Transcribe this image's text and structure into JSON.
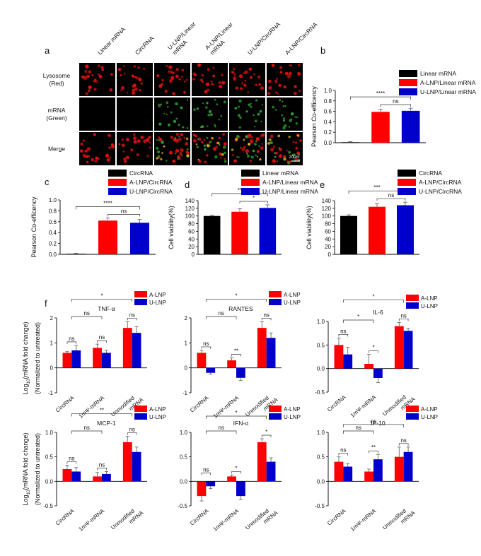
{
  "figure_a": {
    "panel_label": "a",
    "columns": [
      "Linear mRNA",
      "CircRNA",
      "U-LNP/Linear mRNA",
      "A-LNP/Linear mRNA",
      "U-LNP/CircRNA",
      "A-LNP/CircRNA"
    ],
    "columns_wrapped": [
      [
        "Linear mRNA"
      ],
      [
        "CircRNA"
      ],
      [
        "U-LNP/Linear",
        "mRNA"
      ],
      [
        "A-LNP/Linear",
        "mRNA"
      ],
      [
        "U-LNP/CircRNA"
      ],
      [
        "A-LNP/CircRNA"
      ]
    ],
    "rows": [
      [
        "Lysosome",
        "(Red)"
      ],
      [
        "mRNA",
        "(Green)"
      ],
      [
        "Merge"
      ]
    ],
    "scale_bar": "20μm",
    "colors": {
      "red_channel": "#e01010",
      "green_channel": "#2da52d",
      "background": "#000000"
    }
  },
  "colors": {
    "black": "#000000",
    "red": "#ff0000",
    "blue": "#0000cc"
  },
  "chart_data": [
    {
      "id": "b",
      "panel_label": "b",
      "type": "bar",
      "categories": [
        "Linear mRNA",
        "A-LNP/Linear mRNA",
        "U-LNP/Linear mRNA"
      ],
      "values": [
        0.01,
        0.59,
        0.61
      ],
      "errors": [
        0.01,
        0.05,
        0.05
      ],
      "colors": [
        "#000000",
        "#ff0000",
        "#0000cc"
      ],
      "ylabel": "Pearson Co-efficency",
      "ylim": [
        0,
        1.0
      ],
      "ticks": [
        0.0,
        0.2,
        0.4,
        0.6,
        0.8,
        1.0
      ],
      "tick_labels": [
        "0.0",
        "0.2",
        "0.4",
        "0.6",
        "0.8",
        "1.0"
      ],
      "legend": [
        "Linear mRNA",
        "A-LNP/Linear mRNA",
        "U-LNP/Linear mRNA"
      ],
      "legend_position": "top-right",
      "significance": [
        {
          "from": 0,
          "to": 2,
          "label": "****"
        },
        {
          "from": 1,
          "to": 2,
          "label": "ns"
        }
      ]
    },
    {
      "id": "c",
      "panel_label": "c",
      "type": "bar",
      "categories": [
        "CircRNA",
        "A-LNP/CircRNA",
        "U-LNP/CircRNA"
      ],
      "values": [
        0.01,
        0.62,
        0.58
      ],
      "errors": [
        0.01,
        0.05,
        0.06
      ],
      "colors": [
        "#000000",
        "#ff0000",
        "#0000cc"
      ],
      "ylabel": "Pearson Co-efficency",
      "ylim": [
        0,
        1.0
      ],
      "ticks": [
        0.0,
        0.2,
        0.4,
        0.6,
        0.8,
        1.0
      ],
      "tick_labels": [
        "0.0",
        "0.2",
        "0.4",
        "0.6",
        "0.8",
        "1.0"
      ],
      "legend": [
        "CircRNA",
        "A-LNP/CircRNA",
        "U-LNP/CircRNA"
      ],
      "legend_position": "top",
      "significance": [
        {
          "from": 0,
          "to": 2,
          "label": "****"
        },
        {
          "from": 1,
          "to": 2,
          "label": "ns"
        }
      ]
    },
    {
      "id": "d",
      "panel_label": "d",
      "type": "bar",
      "categories": [
        "Linear mRNA",
        "A-LNP/Linear mRNA",
        "U-LNP/Linear mRNA"
      ],
      "values": [
        100,
        111,
        121
      ],
      "errors": [
        2,
        8,
        8
      ],
      "colors": [
        "#000000",
        "#ff0000",
        "#0000cc"
      ],
      "ylabel": "Cell viability(%)",
      "ylim": [
        0,
        140
      ],
      "ticks": [
        0,
        20,
        40,
        60,
        80,
        100,
        120,
        140
      ],
      "tick_labels": [
        "0",
        "20",
        "40",
        "60",
        "80",
        "100",
        "120",
        "140"
      ],
      "legend": [
        "Linear mRNA",
        "A-LNP/Linear mRNA",
        "U-LNP/Linear mRNA"
      ],
      "legend_position": "top",
      "significance": [
        {
          "from": 0,
          "to": 2,
          "label": "**"
        },
        {
          "from": 1,
          "to": 2,
          "label": "*"
        }
      ]
    },
    {
      "id": "e",
      "panel_label": "e",
      "type": "bar",
      "categories": [
        "CircRNA",
        "A-LNP/CircRNA",
        "U-LNP/CircRNA"
      ],
      "values": [
        100,
        124,
        128
      ],
      "errors": [
        3,
        8,
        8
      ],
      "colors": [
        "#000000",
        "#ff0000",
        "#0000cc"
      ],
      "ylabel": "Cell viability(%)",
      "ylim": [
        0,
        140
      ],
      "ticks": [
        0,
        20,
        40,
        60,
        80,
        100,
        120,
        140
      ],
      "tick_labels": [
        "0",
        "20",
        "40",
        "60",
        "80",
        "100",
        "120",
        "140"
      ],
      "legend": [
        "CircRNA",
        "A-LNP/CircRNA",
        "U-LNP/CircRNA"
      ],
      "legend_position": "top",
      "significance": [
        {
          "from": 0,
          "to": 2,
          "label": "***"
        },
        {
          "from": 1,
          "to": 2,
          "label": "ns"
        }
      ]
    },
    {
      "id": "f1",
      "panel_label": "f",
      "type": "bar",
      "title": "TNF-α",
      "categories": [
        "CircRNA",
        "1mΨ-mRNA",
        "Unmodified mRNA"
      ],
      "series": [
        {
          "name": "A-LNP",
          "values": [
            0.6,
            0.8,
            1.6
          ],
          "errors": [
            0.05,
            0.15,
            0.25
          ]
        },
        {
          "name": "U-LNP",
          "values": [
            0.7,
            0.6,
            1.4
          ],
          "errors": [
            0.2,
            0.1,
            0.25
          ]
        }
      ],
      "ylabel": "Log10(mRNA fold change) (Normalized to untreated)",
      "ylim": [
        -1,
        2
      ],
      "ticks": [
        -1,
        0,
        1,
        2
      ],
      "tick_labels": [
        "-1",
        "0",
        "1",
        "2"
      ],
      "significance": [
        {
          "type": "within",
          "cat": 0,
          "label": "ns"
        },
        {
          "type": "within",
          "cat": 1,
          "label": "ns"
        },
        {
          "type": "within",
          "cat": 2,
          "label": "ns"
        },
        {
          "type": "between",
          "from": 0,
          "to": 1,
          "label": "ns"
        },
        {
          "type": "between",
          "from": 0,
          "to": 2,
          "label": "*"
        }
      ]
    },
    {
      "id": "f2",
      "type": "bar",
      "title": "RANTES",
      "categories": [
        "CircRNA",
        "1mΨ-mRNA",
        "Unmodified mRNA"
      ],
      "series": [
        {
          "name": "A-LNP",
          "values": [
            0.6,
            0.3,
            1.6
          ],
          "errors": [
            0.1,
            0.1,
            0.25
          ]
        },
        {
          "name": "U-LNP",
          "values": [
            -0.2,
            -0.4,
            1.2
          ],
          "errors": [
            0.05,
            0.1,
            0.2
          ]
        }
      ],
      "ylim": [
        -1,
        2
      ],
      "ticks": [
        -1,
        0,
        1,
        2
      ],
      "tick_labels": [
        "-1",
        "0",
        "1",
        "2"
      ],
      "significance": [
        {
          "type": "within",
          "cat": 0,
          "label": "ns"
        },
        {
          "type": "within",
          "cat": 1,
          "label": "**"
        },
        {
          "type": "within",
          "cat": 2,
          "label": "ns"
        },
        {
          "type": "between",
          "from": 0,
          "to": 1,
          "label": "ns"
        },
        {
          "type": "between",
          "from": 0,
          "to": 2,
          "label": "*"
        }
      ]
    },
    {
      "id": "f3",
      "type": "bar",
      "title": "IL-6",
      "categories": [
        "CircRNA",
        "1mΨ-mRNA",
        "Unmodified mRNA"
      ],
      "series": [
        {
          "name": "A-LNP",
          "values": [
            0.5,
            0.1,
            0.9
          ],
          "errors": [
            0.15,
            0.2,
            0.08
          ]
        },
        {
          "name": "U-LNP",
          "values": [
            0.3,
            -0.2,
            0.8
          ],
          "errors": [
            0.15,
            0.1,
            0.05
          ]
        }
      ],
      "ylim": [
        -0.5,
        1.0
      ],
      "ticks": [
        -0.5,
        0.0,
        0.5,
        1.0
      ],
      "tick_labels": [
        "-0.5",
        "0.0",
        "0.5",
        "1.0"
      ],
      "significance": [
        {
          "type": "within",
          "cat": 0,
          "label": "ns"
        },
        {
          "type": "within",
          "cat": 1,
          "label": "*"
        },
        {
          "type": "within",
          "cat": 2,
          "label": "ns"
        },
        {
          "type": "between",
          "from": 0,
          "to": 1,
          "label": "*"
        },
        {
          "type": "between",
          "from": 0,
          "to": 2,
          "label": "*"
        }
      ]
    },
    {
      "id": "f4",
      "type": "bar",
      "title": "MCP-1",
      "categories": [
        "CircRNA",
        "1mΨ-mRNA",
        "Unmodified mRNA"
      ],
      "series": [
        {
          "name": "A-LNP",
          "values": [
            0.25,
            0.1,
            0.8
          ],
          "errors": [
            0.08,
            0.08,
            0.12
          ]
        },
        {
          "name": "U-LNP",
          "values": [
            0.2,
            0.15,
            0.6
          ],
          "errors": [
            0.08,
            0.05,
            0.1
          ]
        }
      ],
      "ylabel": "Log10(mRNA fold change) (Normalized to untreated)",
      "ylim": [
        -0.5,
        1.0
      ],
      "ticks": [
        -0.5,
        0.0,
        0.5,
        1.0
      ],
      "tick_labels": [
        "-0.5",
        "0.0",
        "0.5",
        "1.0"
      ],
      "significance": [
        {
          "type": "within",
          "cat": 0,
          "label": "ns"
        },
        {
          "type": "within",
          "cat": 1,
          "label": "ns"
        },
        {
          "type": "within",
          "cat": 2,
          "label": "ns"
        },
        {
          "type": "between",
          "from": 0,
          "to": 1,
          "label": "ns"
        },
        {
          "type": "between",
          "from": 0,
          "to": 2,
          "label": "**"
        }
      ]
    },
    {
      "id": "f5",
      "type": "bar",
      "title": "IFN-α",
      "categories": [
        "CircRNA",
        "1mΨ-mRNA",
        "Unmodified mRNA"
      ],
      "series": [
        {
          "name": "A-LNP",
          "values": [
            -0.3,
            0.1,
            0.8
          ],
          "errors": [
            0.1,
            0.03,
            0.07
          ]
        },
        {
          "name": "U-LNP",
          "values": [
            -0.1,
            -0.3,
            0.4
          ],
          "errors": [
            0.05,
            0.07,
            0.08
          ]
        }
      ],
      "ylim": [
        -0.5,
        1.0
      ],
      "ticks": [
        -0.5,
        0.0,
        0.5,
        1.0
      ],
      "tick_labels": [
        "-0.5",
        "0.0",
        "0.5",
        "1.0"
      ],
      "significance": [
        {
          "type": "within",
          "cat": 0,
          "label": "ns"
        },
        {
          "type": "within",
          "cat": 1,
          "label": "*"
        },
        {
          "type": "within",
          "cat": 2,
          "label": "*"
        },
        {
          "type": "between",
          "from": 0,
          "to": 1,
          "label": "ns"
        },
        {
          "type": "between",
          "from": 0,
          "to": 2,
          "label": "*"
        }
      ]
    },
    {
      "id": "f6",
      "type": "bar",
      "title": "IP-10",
      "categories": [
        "CircRNA",
        "1mΨ-mRNA",
        "Unmodified mRNA"
      ],
      "series": [
        {
          "name": "A-LNP",
          "values": [
            0.4,
            0.2,
            0.5
          ],
          "errors": [
            0.1,
            0.05,
            0.2
          ]
        },
        {
          "name": "U-LNP",
          "values": [
            0.3,
            0.45,
            0.6
          ],
          "errors": [
            0.06,
            0.1,
            0.1
          ]
        }
      ],
      "ylim": [
        -0.5,
        1.0
      ],
      "ticks": [
        -0.5,
        0.0,
        0.5,
        1.0
      ],
      "tick_labels": [
        "-0.5",
        "0.0",
        "0.5",
        "1.0"
      ],
      "significance": [
        {
          "type": "within",
          "cat": 0,
          "label": "ns"
        },
        {
          "type": "within",
          "cat": 1,
          "label": "**"
        },
        {
          "type": "within",
          "cat": 2,
          "label": "ns"
        },
        {
          "type": "between",
          "from": 0,
          "to": 1,
          "label": "ns"
        },
        {
          "type": "between",
          "from": 0,
          "to": 2,
          "label": "ns"
        }
      ]
    }
  ]
}
